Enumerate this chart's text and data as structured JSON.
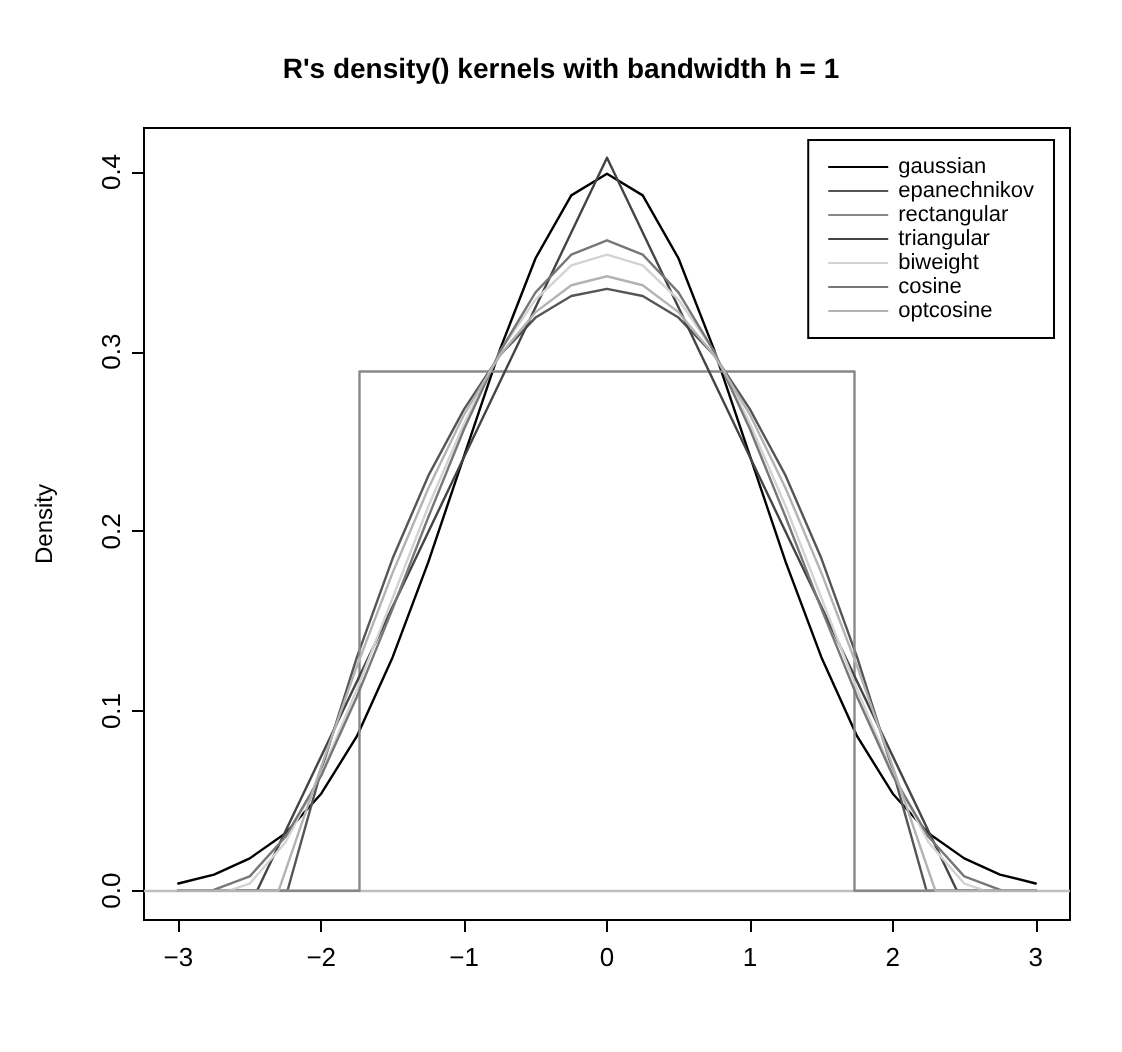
{
  "chart_data": {
    "type": "line",
    "title": "R's density() kernels with bandwidth h = 1",
    "ylabel": "Density",
    "xlim": [
      -3.24,
      3.24
    ],
    "ylim": [
      -0.0163,
      0.4245
    ],
    "xticks": [
      {
        "value": -3,
        "label": "−3"
      },
      {
        "value": -2,
        "label": "−2"
      },
      {
        "value": -1,
        "label": "−1"
      },
      0,
      1,
      2,
      3
    ],
    "yticks": [
      {
        "value": 0,
        "label": "0.0"
      },
      0.1,
      0.2,
      0.3,
      0.4
    ],
    "grid": false,
    "legend": "top right",
    "marker": "none",
    "line_style": "solid",
    "ref_lines": [
      {
        "axis": "y",
        "value": 0,
        "color": "#bebebe"
      }
    ],
    "series": [
      {
        "name": "gaussian",
        "color": "#000000",
        "x": [
          -3,
          -2.75,
          -2.5,
          -2.25,
          -2,
          -1.75,
          -1.5,
          -1.25,
          -1,
          -0.75,
          -0.5,
          -0.25,
          0,
          0.25,
          0.5,
          0.75,
          1,
          1.25,
          1.5,
          1.75,
          2,
          2.25,
          2.5,
          2.75,
          3
        ],
        "values": [
          0.004,
          0.009,
          0.018,
          0.032,
          0.054,
          0.086,
          0.13,
          0.183,
          0.242,
          0.301,
          0.352,
          0.387,
          0.399,
          0.387,
          0.352,
          0.301,
          0.242,
          0.183,
          0.13,
          0.086,
          0.054,
          0.032,
          0.018,
          0.009,
          0.004
        ]
      },
      {
        "name": "epanechnikov",
        "color": "#555555",
        "x": [
          -3,
          -2.236,
          -2,
          -1.75,
          -1.5,
          -1.25,
          -1,
          -0.75,
          -0.5,
          -0.25,
          0,
          0.25,
          0.5,
          0.75,
          1,
          1.25,
          1.5,
          1.75,
          2,
          2.236,
          3
        ],
        "values": [
          0,
          0,
          0.067,
          0.13,
          0.185,
          0.231,
          0.268,
          0.298,
          0.319,
          0.331,
          0.335,
          0.331,
          0.319,
          0.298,
          0.268,
          0.231,
          0.185,
          0.13,
          0.067,
          0,
          0
        ]
      },
      {
        "name": "rectangular",
        "color": "#888888",
        "x": [
          -3,
          -1.732,
          -1.732,
          1.732,
          1.732,
          3
        ],
        "values": [
          0,
          0,
          0.289,
          0.289,
          0,
          0
        ]
      },
      {
        "name": "triangular",
        "color": "#444444",
        "x": [
          -3,
          -2.449,
          0,
          2.449,
          3
        ],
        "values": [
          0,
          0,
          0.408,
          0,
          0
        ]
      },
      {
        "name": "biweight",
        "color": "#d3d3d3",
        "x": [
          -3,
          -2.646,
          -2.5,
          -2.25,
          -2,
          -1.75,
          -1.5,
          -1.25,
          -1,
          -0.75,
          -0.5,
          -0.25,
          0,
          0.25,
          0.5,
          0.75,
          1,
          1.25,
          1.5,
          1.75,
          2,
          2.25,
          2.5,
          2.646,
          3
        ],
        "values": [
          0,
          0,
          0.004,
          0.027,
          0.065,
          0.112,
          0.163,
          0.214,
          0.26,
          0.3,
          0.329,
          0.348,
          0.354,
          0.348,
          0.329,
          0.3,
          0.26,
          0.214,
          0.163,
          0.112,
          0.065,
          0.027,
          0.004,
          0,
          0
        ]
      },
      {
        "name": "cosine",
        "color": "#777777",
        "x": [
          -3,
          -2.766,
          -2.5,
          -2.25,
          -2,
          -1.75,
          -1.5,
          -1.25,
          -1,
          -0.75,
          -0.5,
          -0.25,
          0,
          0.25,
          0.5,
          0.75,
          1,
          1.25,
          1.5,
          1.75,
          2,
          2.25,
          2.5,
          2.766,
          3
        ],
        "values": [
          0,
          0,
          0.008,
          0.03,
          0.064,
          0.108,
          0.157,
          0.208,
          0.257,
          0.3,
          0.333,
          0.354,
          0.362,
          0.354,
          0.333,
          0.3,
          0.257,
          0.208,
          0.157,
          0.108,
          0.064,
          0.03,
          0.008,
          0,
          0
        ]
      },
      {
        "name": "optcosine",
        "color": "#b3b3b3",
        "x": [
          -3,
          -2.298,
          -2.25,
          -2,
          -1.75,
          -1.5,
          -1.25,
          -1,
          -0.75,
          -0.5,
          -0.25,
          0,
          0.25,
          0.5,
          0.75,
          1,
          1.25,
          1.5,
          1.75,
          2,
          2.25,
          2.298,
          3
        ],
        "values": [
          0,
          0,
          0.011,
          0.069,
          0.125,
          0.177,
          0.224,
          0.265,
          0.298,
          0.322,
          0.337,
          0.342,
          0.337,
          0.322,
          0.298,
          0.265,
          0.224,
          0.177,
          0.125,
          0.069,
          0.011,
          0,
          0
        ]
      }
    ]
  }
}
